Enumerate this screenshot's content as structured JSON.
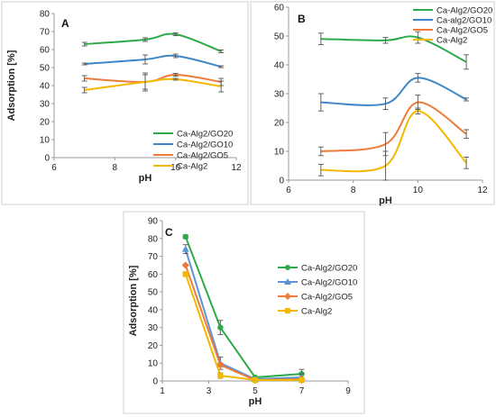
{
  "chart_data": [
    {
      "panel": "A",
      "type": "line",
      "xlabel": "pH",
      "ylabel": "Adsorption [%]",
      "xlim": [
        6,
        12
      ],
      "ylim": [
        0,
        80
      ],
      "xticks": [
        6,
        8,
        10,
        12
      ],
      "yticks": [
        0,
        10,
        20,
        30,
        40,
        50,
        60,
        70,
        80
      ],
      "grid": false,
      "legend": "bottom-right",
      "series": [
        {
          "name": "Ca-Alg2/GO20",
          "color": "#2eaa4a",
          "x": [
            7,
            9,
            10,
            11.5
          ],
          "y": [
            63,
            65.5,
            68.5,
            59
          ],
          "err": [
            1.0,
            1.0,
            0.8,
            0.8
          ]
        },
        {
          "name": "Ca-Alg2/GO10",
          "color": "#3f86c6",
          "x": [
            7,
            9,
            10,
            11.5
          ],
          "y": [
            52,
            54.5,
            56.5,
            50.5
          ],
          "err": [
            0.5,
            2.5,
            1.0,
            0.5
          ]
        },
        {
          "name": "Ca-Alg2/GO5",
          "color": "#ee7b3a",
          "x": [
            7,
            9,
            10,
            11.5
          ],
          "y": [
            44,
            42,
            46,
            42
          ],
          "err": [
            1.5,
            4.0,
            0.8,
            2.0
          ]
        },
        {
          "name": "Ca-Alg2",
          "color": "#f5b800",
          "x": [
            7,
            9,
            10,
            11.5
          ],
          "y": [
            37.5,
            42,
            43.5,
            39.5
          ],
          "err": [
            1.5,
            5.0,
            0.5,
            3.0
          ]
        }
      ]
    },
    {
      "panel": "B",
      "type": "line",
      "xlabel": "pH",
      "ylabel": "",
      "xlim": [
        6,
        12
      ],
      "ylim": [
        0,
        60
      ],
      "xticks": [
        6,
        8,
        10,
        12
      ],
      "yticks": [
        0,
        10,
        20,
        30,
        40,
        50,
        60
      ],
      "grid": false,
      "legend": "top-right",
      "series": [
        {
          "name": "Ca-Alg2/GO20",
          "color": "#2eaa4a",
          "x": [
            7,
            9,
            10,
            11.5
          ],
          "y": [
            49,
            48.5,
            49.5,
            41
          ],
          "err": [
            2.0,
            1.0,
            2.0,
            2.5
          ]
        },
        {
          "name": "Ca-alg2/GO10",
          "color": "#3f86c6",
          "x": [
            7,
            9,
            10,
            11.5
          ],
          "y": [
            27,
            26.5,
            35.5,
            28
          ],
          "err": [
            3.0,
            2.0,
            1.5,
            0.5
          ]
        },
        {
          "name": "Ca-Alg2/GO5",
          "color": "#ee7b3a",
          "x": [
            7,
            9,
            10,
            11.5
          ],
          "y": [
            10,
            12.5,
            27,
            16
          ],
          "err": [
            1.5,
            4.0,
            2.5,
            1.5
          ]
        },
        {
          "name": "Ca-Alg2",
          "color": "#f5b800",
          "x": [
            7,
            9,
            10,
            11.5
          ],
          "y": [
            3.5,
            5,
            24,
            6
          ],
          "err": [
            2.0,
            5.0,
            1.0,
            2.0
          ]
        }
      ]
    },
    {
      "panel": "C",
      "type": "line",
      "xlabel": "pH",
      "ylabel": "Adsorption [%]",
      "xlim": [
        1,
        9
      ],
      "ylim": [
        0,
        90
      ],
      "xticks": [
        1,
        3,
        5,
        7,
        9
      ],
      "yticks": [
        0,
        10,
        20,
        30,
        40,
        50,
        60,
        70,
        80,
        90
      ],
      "grid": false,
      "legend": "top-right",
      "series": [
        {
          "name": "Ca-Alg2/GO20",
          "color": "#2eaa4a",
          "marker": "circle",
          "x": [
            2,
            3.5,
            5,
            7
          ],
          "y": [
            81,
            30,
            2,
            4
          ],
          "err": [
            1.0,
            4.0,
            0.5,
            2.5
          ]
        },
        {
          "name": "Ca-Alg2/GO10",
          "color": "#5b93d6",
          "marker": "triangle",
          "x": [
            2,
            3.5,
            5,
            7
          ],
          "y": [
            74,
            10,
            1,
            2
          ],
          "err": [
            2.5,
            3.5,
            0.5,
            2.0
          ]
        },
        {
          "name": "Ca-Alg2/GO5",
          "color": "#ee7b3a",
          "marker": "diamond",
          "x": [
            2,
            3.5,
            5,
            7
          ],
          "y": [
            65,
            9,
            0.5,
            1
          ],
          "err": [
            0.5,
            1.0,
            0.3,
            0.5
          ]
        },
        {
          "name": "Ca-Alg2",
          "color": "#f5b800",
          "marker": "square",
          "x": [
            2,
            3.5,
            5,
            7
          ],
          "y": [
            60,
            3,
            0.5,
            0.5
          ],
          "err": [
            0.5,
            1.5,
            0.3,
            0.3
          ]
        }
      ]
    }
  ]
}
